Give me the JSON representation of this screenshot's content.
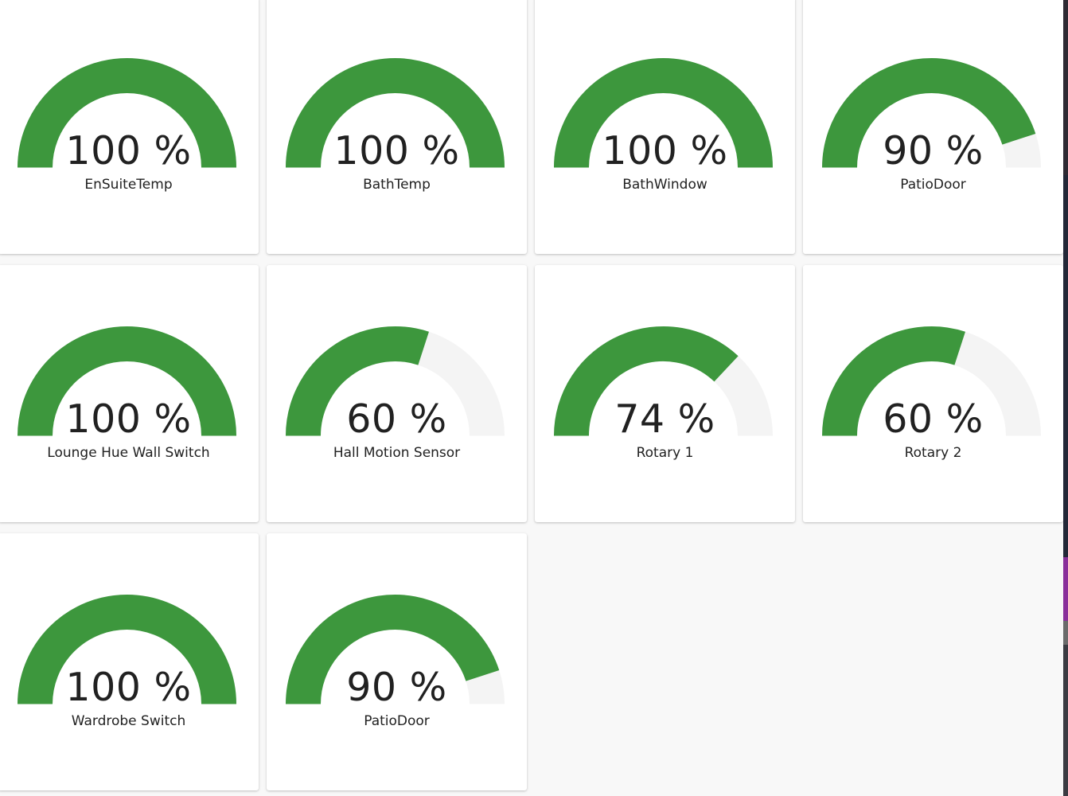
{
  "gauge_color": "#3d973d",
  "track_color": "#f4f4f4",
  "gauges": [
    {
      "name": "EnSuiteTemp",
      "value": 100,
      "unit": "%",
      "display": "100 %"
    },
    {
      "name": "BathTemp",
      "value": 100,
      "unit": "%",
      "display": "100 %"
    },
    {
      "name": "BathWindow",
      "value": 100,
      "unit": "%",
      "display": "100 %"
    },
    {
      "name": "PatioDoor",
      "value": 90,
      "unit": "%",
      "display": "90 %"
    },
    {
      "name": "Lounge Hue Wall Switch",
      "value": 100,
      "unit": "%",
      "display": "100 %"
    },
    {
      "name": "Hall Motion Sensor",
      "value": 60,
      "unit": "%",
      "display": "60 %"
    },
    {
      "name": "Rotary 1",
      "value": 74,
      "unit": "%",
      "display": "74 %"
    },
    {
      "name": "Rotary 2",
      "value": 60,
      "unit": "%",
      "display": "60 %"
    },
    {
      "name": "Wardrobe Switch",
      "value": 100,
      "unit": "%",
      "display": "100 %"
    },
    {
      "name": "PatioDoor",
      "value": 90,
      "unit": "%",
      "display": "90 %"
    }
  ]
}
